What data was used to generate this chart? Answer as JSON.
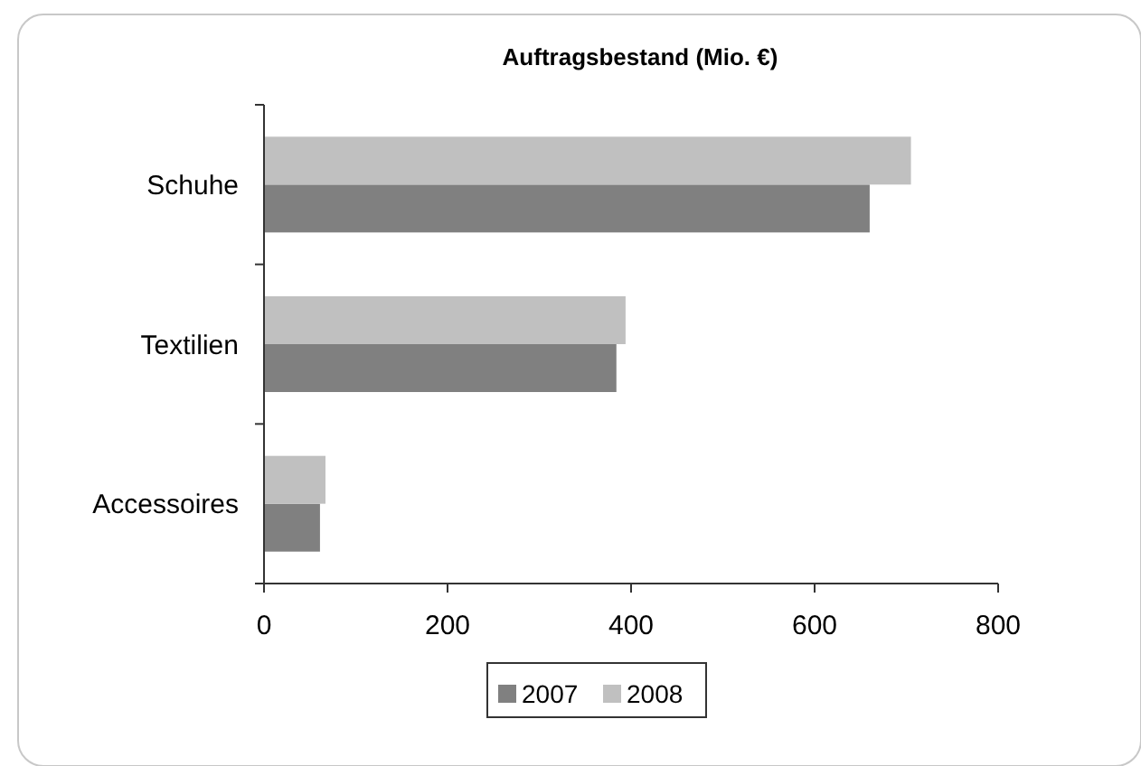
{
  "chart_data": {
    "type": "bar",
    "orientation": "horizontal",
    "title": "Auftragsbestand  (Mio. €)",
    "categories": [
      "Schuhe",
      "Textilien",
      "Accessoires"
    ],
    "series": [
      {
        "name": "2007",
        "color": "#808080",
        "values": [
          660,
          384,
          61
        ]
      },
      {
        "name": "2008",
        "color": "#c0c0c0",
        "values": [
          705,
          394,
          67
        ]
      }
    ],
    "xlim": [
      0,
      800
    ],
    "xticks": [
      0,
      200,
      400,
      600,
      800
    ],
    "legend": "bottom",
    "grid": false
  }
}
